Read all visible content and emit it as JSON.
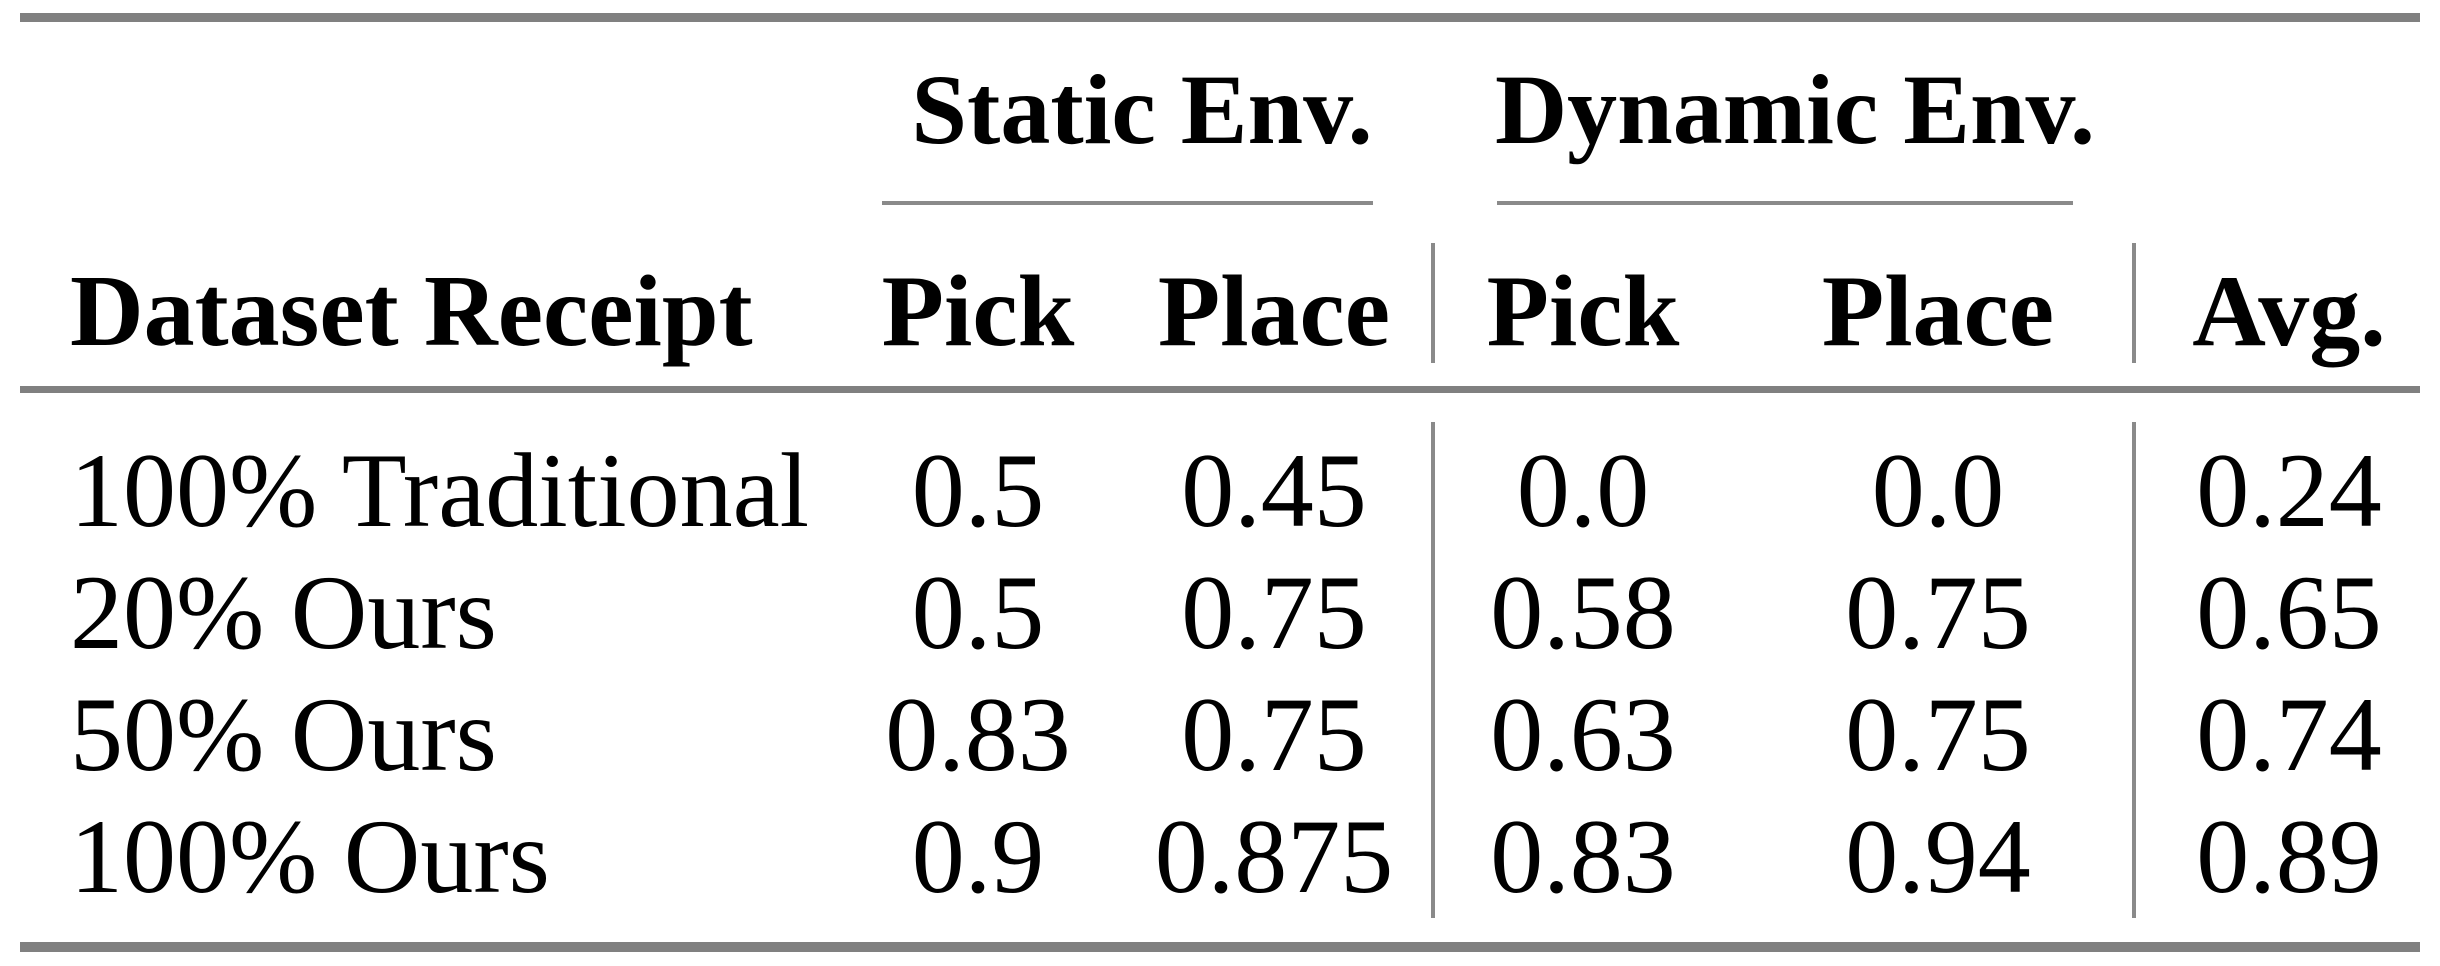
{
  "table": {
    "column_groups": [
      {
        "label": "Static Env."
      },
      {
        "label": "Dynamic Env."
      }
    ],
    "columns": {
      "label": "Dataset Receipt",
      "static_pick": "Pick",
      "static_place": "Place",
      "dynamic_pick": "Pick",
      "dynamic_place": "Place",
      "avg": "Avg."
    },
    "rows": [
      {
        "label": "100% Traditional",
        "values": [
          "0.5",
          "0.45",
          "0.0",
          "0.0",
          "0.24"
        ]
      },
      {
        "label": "20% Ours",
        "values": [
          "0.5",
          "0.75",
          "0.58",
          "0.75",
          "0.65"
        ]
      },
      {
        "label": "50% Ours",
        "values": [
          "0.83",
          "0.75",
          "0.63",
          "0.75",
          "0.74"
        ]
      },
      {
        "label": "100% Ours",
        "values": [
          "0.9",
          "0.875",
          "0.83",
          "0.94",
          "0.89"
        ]
      }
    ],
    "colors": {
      "thick_rule": "#808080",
      "thin_rule": "#8a8a8a",
      "text": "#000000",
      "background": "#ffffff"
    }
  },
  "chart_data": {
    "type": "table",
    "title": "",
    "column_groups": [
      "",
      "Static Env.",
      "Static Env.",
      "Dynamic Env.",
      "Dynamic Env.",
      ""
    ],
    "columns": [
      "Dataset Receipt",
      "Pick",
      "Place",
      "Pick",
      "Place",
      "Avg."
    ],
    "rows": [
      [
        "100% Traditional",
        0.5,
        0.45,
        0.0,
        0.0,
        0.24
      ],
      [
        "20% Ours",
        0.5,
        0.75,
        0.58,
        0.75,
        0.65
      ],
      [
        "50% Ours",
        0.83,
        0.75,
        0.63,
        0.75,
        0.74
      ],
      [
        "100% Ours",
        0.9,
        0.875,
        0.83,
        0.94,
        0.89
      ]
    ]
  }
}
